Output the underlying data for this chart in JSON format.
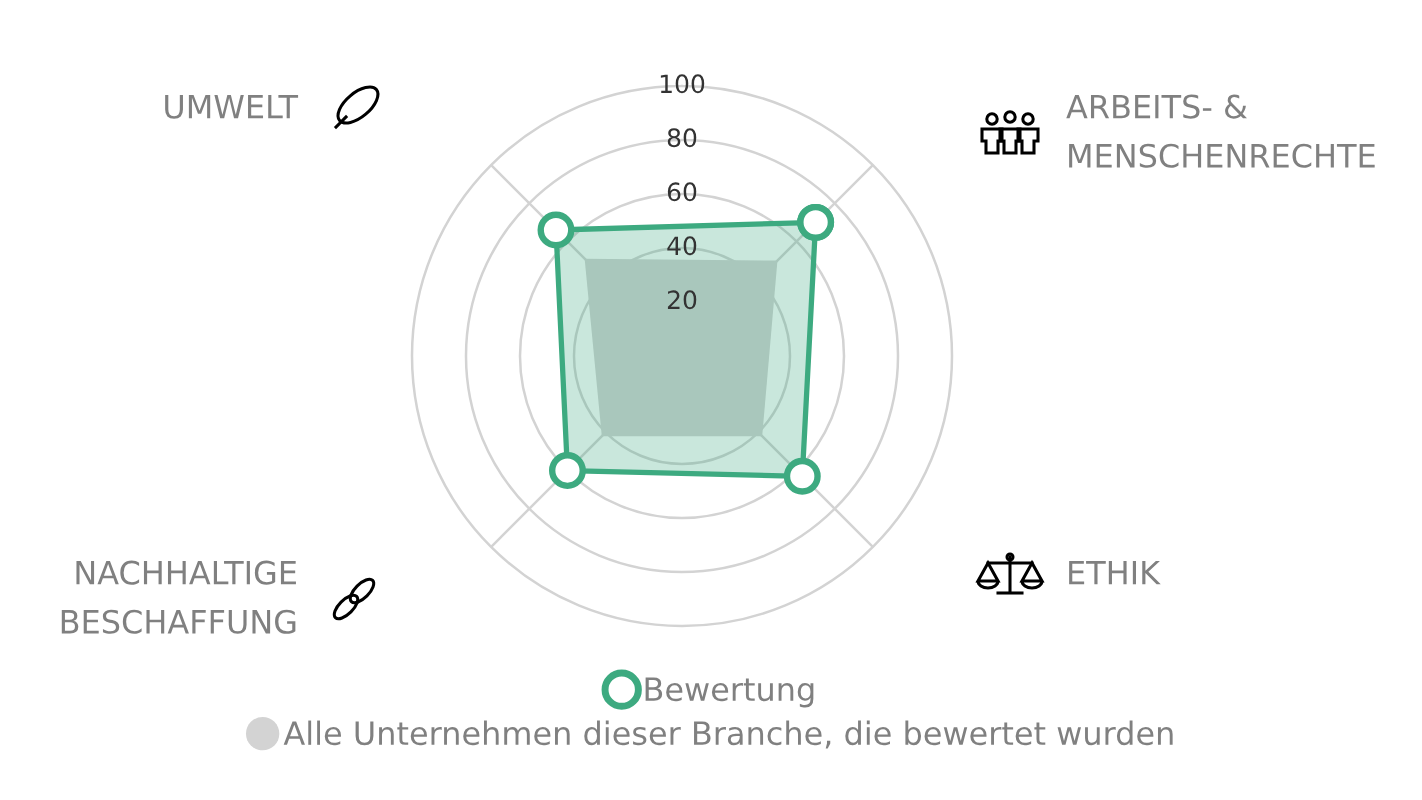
{
  "chart_data": {
    "type": "radar",
    "categories": [
      "ARBEITS- &\nMENSCHENRECHTE",
      "ETHIK",
      "NACHHALTIGE\nBESCHAFFUNG",
      "UMWELT"
    ],
    "series": [
      {
        "name": "Bewertung",
        "color": "#3daa80",
        "values": [
          70,
          63,
          60,
          66
        ],
        "marker": "circle"
      },
      {
        "name": "Alle Unternehmen dieser Branche, die bewertet wurden",
        "color": "#d3d3d3",
        "values": [
          50,
          42,
          42,
          51
        ]
      }
    ],
    "ylim": [
      0,
      100
    ],
    "yticks": [
      20,
      40,
      60,
      80,
      100
    ],
    "grid": true,
    "legend": "bottom"
  }
}
